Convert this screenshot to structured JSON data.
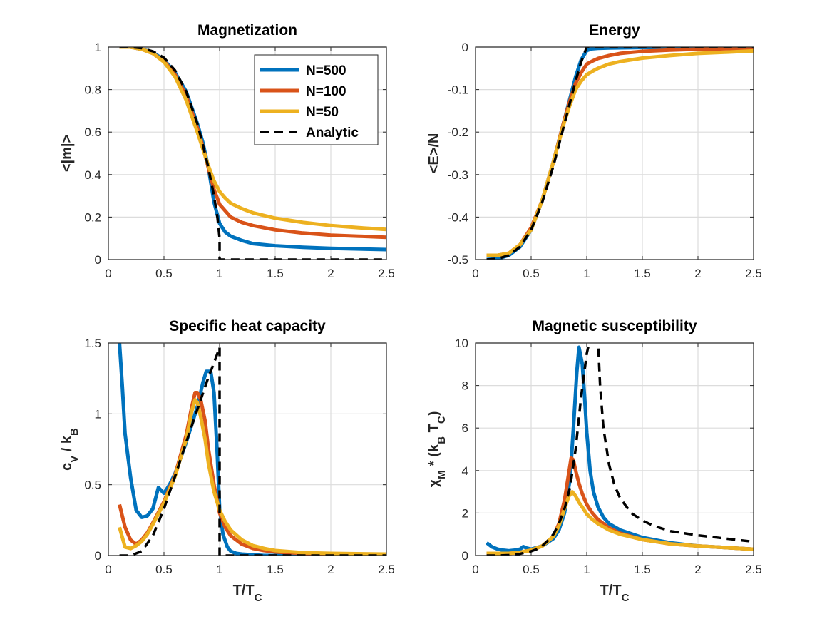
{
  "legend": {
    "placement": "top-right of first panel",
    "entries": [
      {
        "label": "N=500",
        "color": "#0072BD",
        "style": "solid"
      },
      {
        "label": "N=100",
        "color": "#D95319",
        "style": "solid"
      },
      {
        "label": "N=50",
        "color": "#EDB120",
        "style": "solid"
      },
      {
        "label": "Analytic",
        "color": "#000000",
        "style": "dashed"
      }
    ]
  },
  "chart_data": [
    {
      "type": "line",
      "title": "Magnetization",
      "ylabel": "<|m|>",
      "xlabel": "",
      "xlim": [
        0,
        2.5
      ],
      "ylim": [
        0,
        1
      ],
      "xticks": [
        "0",
        "0.5",
        "1",
        "1.5",
        "2",
        "2.5"
      ],
      "yticks": [
        "0",
        "0.2",
        "0.4",
        "0.6",
        "0.8",
        "1"
      ],
      "grid": true,
      "series": [
        {
          "name": "N=500",
          "color": "#0072BD",
          "dash": false,
          "x": [
            0.1,
            0.2,
            0.3,
            0.4,
            0.5,
            0.6,
            0.7,
            0.8,
            0.85,
            0.9,
            0.95,
            1.0,
            1.05,
            1.1,
            1.2,
            1.3,
            1.5,
            1.75,
            2.0,
            2.25,
            2.5
          ],
          "y": [
            1.0,
            1.0,
            0.99,
            0.975,
            0.94,
            0.88,
            0.79,
            0.64,
            0.55,
            0.43,
            0.27,
            0.17,
            0.13,
            0.11,
            0.09,
            0.075,
            0.065,
            0.058,
            0.053,
            0.05,
            0.047
          ]
        },
        {
          "name": "N=100",
          "color": "#D95319",
          "dash": false,
          "x": [
            0.1,
            0.2,
            0.3,
            0.4,
            0.5,
            0.6,
            0.7,
            0.8,
            0.85,
            0.9,
            0.95,
            1.0,
            1.05,
            1.1,
            1.2,
            1.3,
            1.5,
            1.75,
            2.0,
            2.25,
            2.5
          ],
          "y": [
            1.0,
            1.0,
            0.99,
            0.97,
            0.935,
            0.87,
            0.77,
            0.62,
            0.53,
            0.43,
            0.33,
            0.26,
            0.23,
            0.2,
            0.175,
            0.16,
            0.14,
            0.125,
            0.115,
            0.11,
            0.105
          ]
        },
        {
          "name": "N=50",
          "color": "#EDB120",
          "dash": false,
          "x": [
            0.1,
            0.2,
            0.3,
            0.4,
            0.5,
            0.6,
            0.7,
            0.8,
            0.85,
            0.9,
            0.95,
            1.0,
            1.05,
            1.1,
            1.2,
            1.3,
            1.5,
            1.75,
            2.0,
            2.25,
            2.5
          ],
          "y": [
            1.0,
            1.0,
            0.99,
            0.97,
            0.93,
            0.86,
            0.75,
            0.6,
            0.52,
            0.44,
            0.37,
            0.32,
            0.29,
            0.265,
            0.24,
            0.22,
            0.195,
            0.175,
            0.16,
            0.15,
            0.142
          ]
        },
        {
          "name": "Analytic",
          "color": "#000000",
          "dash": true,
          "x": [
            0.1,
            0.2,
            0.3,
            0.4,
            0.5,
            0.6,
            0.7,
            0.8,
            0.85,
            0.9,
            0.95,
            0.98,
            1.0,
            1.0,
            2.5
          ],
          "y": [
            1.0,
            1.0,
            0.995,
            0.98,
            0.95,
            0.89,
            0.79,
            0.64,
            0.54,
            0.43,
            0.3,
            0.2,
            0.1,
            0.0,
            0.0
          ]
        }
      ]
    },
    {
      "type": "line",
      "title": "Energy",
      "ylabel": "<E>/N",
      "xlabel": "",
      "xlim": [
        0,
        2.5
      ],
      "ylim": [
        -0.5,
        0
      ],
      "xticks": [
        "0",
        "0.5",
        "1",
        "1.5",
        "2",
        "2.5"
      ],
      "yticks": [
        "-0.5",
        "-0.4",
        "-0.3",
        "-0.2",
        "-0.1",
        "0"
      ],
      "grid": true,
      "series": [
        {
          "name": "N=500",
          "color": "#0072BD",
          "dash": false,
          "x": [
            0.1,
            0.2,
            0.3,
            0.4,
            0.5,
            0.6,
            0.7,
            0.8,
            0.85,
            0.9,
            0.95,
            1.0,
            1.05,
            1.1,
            1.2,
            1.5,
            2.0,
            2.5
          ],
          "y": [
            -0.5,
            -0.498,
            -0.49,
            -0.47,
            -0.43,
            -0.36,
            -0.27,
            -0.17,
            -0.12,
            -0.07,
            -0.03,
            -0.008,
            -0.004,
            -0.003,
            -0.002,
            -0.001,
            -0.001,
            -0.0005
          ]
        },
        {
          "name": "N=100",
          "color": "#D95319",
          "dash": false,
          "x": [
            0.1,
            0.2,
            0.3,
            0.4,
            0.5,
            0.6,
            0.7,
            0.8,
            0.85,
            0.9,
            0.95,
            1.0,
            1.05,
            1.1,
            1.2,
            1.3,
            1.5,
            1.75,
            2.0,
            2.5
          ],
          "y": [
            -0.49,
            -0.49,
            -0.485,
            -0.465,
            -0.425,
            -0.36,
            -0.27,
            -0.17,
            -0.125,
            -0.085,
            -0.06,
            -0.04,
            -0.033,
            -0.027,
            -0.02,
            -0.015,
            -0.01,
            -0.007,
            -0.005,
            -0.003
          ]
        },
        {
          "name": "N=50",
          "color": "#EDB120",
          "dash": false,
          "x": [
            0.1,
            0.2,
            0.3,
            0.4,
            0.5,
            0.6,
            0.7,
            0.8,
            0.85,
            0.9,
            0.95,
            1.0,
            1.05,
            1.1,
            1.2,
            1.3,
            1.5,
            1.75,
            2.0,
            2.25,
            2.5
          ],
          "y": [
            -0.49,
            -0.49,
            -0.485,
            -0.465,
            -0.43,
            -0.36,
            -0.27,
            -0.175,
            -0.135,
            -0.1,
            -0.08,
            -0.065,
            -0.057,
            -0.05,
            -0.04,
            -0.034,
            -0.026,
            -0.02,
            -0.015,
            -0.012,
            -0.009
          ]
        },
        {
          "name": "Analytic",
          "color": "#000000",
          "dash": true,
          "x": [
            0.1,
            0.2,
            0.3,
            0.4,
            0.5,
            0.6,
            0.7,
            0.8,
            0.85,
            0.9,
            0.95,
            1.0,
            1.05,
            2.5
          ],
          "y": [
            -0.5,
            -0.498,
            -0.49,
            -0.47,
            -0.43,
            -0.365,
            -0.28,
            -0.18,
            -0.13,
            -0.08,
            -0.035,
            0.0,
            0.0,
            0.0
          ]
        }
      ]
    },
    {
      "type": "line",
      "title": "Specific heat capacity",
      "ylabel": "c_V / k_B",
      "xlabel": "T/T_C",
      "xlim": [
        0,
        2.5
      ],
      "ylim": [
        0,
        1.5
      ],
      "xticks": [
        "0",
        "0.5",
        "1",
        "1.5",
        "2",
        "2.5"
      ],
      "yticks": [
        "0",
        "0.5",
        "1",
        "1.5"
      ],
      "grid": true,
      "series": [
        {
          "name": "N=500",
          "color": "#0072BD",
          "dash": false,
          "x": [
            0.1,
            0.125,
            0.15,
            0.2,
            0.25,
            0.3,
            0.35,
            0.4,
            0.45,
            0.5,
            0.55,
            0.6,
            0.7,
            0.8,
            0.85,
            0.88,
            0.92,
            0.95,
            0.98,
            1.0,
            1.03,
            1.07,
            1.1,
            1.15,
            1.2,
            1.3,
            1.4,
            2.5
          ],
          "y": [
            1.5,
            1.2,
            0.86,
            0.55,
            0.32,
            0.27,
            0.28,
            0.33,
            0.48,
            0.44,
            0.5,
            0.58,
            0.8,
            1.05,
            1.22,
            1.3,
            1.3,
            1.15,
            0.7,
            0.33,
            0.15,
            0.06,
            0.03,
            0.015,
            0.01,
            0.005,
            0.0,
            0.0
          ]
        },
        {
          "name": "N=100",
          "color": "#D95319",
          "dash": false,
          "x": [
            0.1,
            0.15,
            0.2,
            0.25,
            0.3,
            0.35,
            0.4,
            0.5,
            0.6,
            0.7,
            0.75,
            0.78,
            0.8,
            0.83,
            0.87,
            0.9,
            0.95,
            1.0,
            1.05,
            1.1,
            1.2,
            1.3,
            1.4,
            1.5,
            1.75,
            2.0,
            2.5
          ],
          "y": [
            0.36,
            0.2,
            0.11,
            0.08,
            0.11,
            0.16,
            0.23,
            0.38,
            0.57,
            0.85,
            1.05,
            1.15,
            1.15,
            1.1,
            0.95,
            0.75,
            0.5,
            0.3,
            0.2,
            0.14,
            0.08,
            0.05,
            0.035,
            0.025,
            0.015,
            0.01,
            0.005
          ]
        },
        {
          "name": "N=50",
          "color": "#EDB120",
          "dash": false,
          "x": [
            0.1,
            0.15,
            0.2,
            0.25,
            0.3,
            0.35,
            0.4,
            0.5,
            0.6,
            0.7,
            0.75,
            0.78,
            0.8,
            0.83,
            0.87,
            0.9,
            0.95,
            1.0,
            1.05,
            1.1,
            1.2,
            1.3,
            1.4,
            1.5,
            1.75,
            2.0,
            2.5
          ],
          "y": [
            0.2,
            0.06,
            0.05,
            0.07,
            0.1,
            0.15,
            0.22,
            0.37,
            0.56,
            0.82,
            1.02,
            1.1,
            1.08,
            0.98,
            0.82,
            0.65,
            0.45,
            0.32,
            0.24,
            0.18,
            0.11,
            0.07,
            0.05,
            0.035,
            0.02,
            0.015,
            0.01
          ]
        },
        {
          "name": "Analytic",
          "color": "#000000",
          "dash": true,
          "x": [
            0.1,
            0.2,
            0.3,
            0.4,
            0.5,
            0.6,
            0.7,
            0.8,
            0.9,
            0.95,
            1.0,
            1.0,
            2.5
          ],
          "y": [
            0.0,
            0.0,
            0.03,
            0.14,
            0.33,
            0.56,
            0.8,
            1.03,
            1.26,
            1.36,
            1.47,
            0.0,
            0.0
          ]
        }
      ]
    },
    {
      "type": "line",
      "title": "Magnetic susceptibility",
      "ylabel": "χ_M * (k_B T_C)",
      "xlabel": "T/T_C",
      "xlim": [
        0,
        2.5
      ],
      "ylim": [
        0,
        10
      ],
      "xticks": [
        "0",
        "0.5",
        "1",
        "1.5",
        "2",
        "2.5"
      ],
      "yticks": [
        "0",
        "2",
        "4",
        "6",
        "8",
        "10"
      ],
      "grid": true,
      "series": [
        {
          "name": "N=500",
          "color": "#0072BD",
          "dash": false,
          "x": [
            0.1,
            0.15,
            0.2,
            0.25,
            0.3,
            0.35,
            0.4,
            0.43,
            0.46,
            0.5,
            0.6,
            0.7,
            0.75,
            0.8,
            0.85,
            0.88,
            0.91,
            0.93,
            0.96,
            0.98,
            1.0,
            1.03,
            1.06,
            1.1,
            1.15,
            1.2,
            1.3,
            1.5,
            1.75,
            2.0,
            2.5
          ],
          "y": [
            0.6,
            0.4,
            0.3,
            0.25,
            0.22,
            0.25,
            0.3,
            0.42,
            0.35,
            0.3,
            0.45,
            0.8,
            1.2,
            2.0,
            3.6,
            6.0,
            8.6,
            9.8,
            9.0,
            7.5,
            5.8,
            4.0,
            3.0,
            2.3,
            1.8,
            1.5,
            1.2,
            0.85,
            0.6,
            0.45,
            0.3
          ]
        },
        {
          "name": "N=100",
          "color": "#D95319",
          "dash": false,
          "x": [
            0.1,
            0.2,
            0.3,
            0.4,
            0.5,
            0.6,
            0.7,
            0.75,
            0.8,
            0.83,
            0.86,
            0.88,
            0.9,
            0.93,
            0.96,
            1.0,
            1.05,
            1.1,
            1.2,
            1.3,
            1.5,
            1.75,
            2.0,
            2.5
          ],
          "y": [
            0.1,
            0.1,
            0.1,
            0.15,
            0.25,
            0.45,
            0.9,
            1.5,
            2.6,
            3.6,
            4.6,
            4.5,
            4.0,
            3.4,
            2.9,
            2.4,
            2.0,
            1.7,
            1.3,
            1.05,
            0.75,
            0.55,
            0.45,
            0.3
          ]
        },
        {
          "name": "N=50",
          "color": "#EDB120",
          "dash": false,
          "x": [
            0.1,
            0.2,
            0.3,
            0.4,
            0.5,
            0.6,
            0.7,
            0.75,
            0.8,
            0.84,
            0.87,
            0.9,
            0.93,
            0.97,
            1.0,
            1.05,
            1.1,
            1.2,
            1.3,
            1.5,
            1.75,
            2.0,
            2.5
          ],
          "y": [
            0.1,
            0.1,
            0.1,
            0.15,
            0.25,
            0.45,
            0.9,
            1.4,
            2.2,
            2.8,
            3.0,
            2.8,
            2.5,
            2.2,
            1.95,
            1.7,
            1.5,
            1.2,
            1.0,
            0.75,
            0.55,
            0.45,
            0.3
          ]
        },
        {
          "name": "Analytic",
          "color": "#000000",
          "dash": true,
          "x": [
            0.1,
            0.2,
            0.3,
            0.4,
            0.5,
            0.55,
            0.6,
            0.65,
            0.7,
            0.75,
            0.8,
            0.85,
            0.9,
            0.95,
            1.0,
            1.03,
            1.06,
            1.08,
            1.1,
            1.12,
            1.15,
            1.2,
            1.25,
            1.3,
            1.4,
            1.5,
            1.6,
            1.75,
            2.0,
            2.25,
            2.5
          ],
          "y": [
            0.0,
            0.0,
            0.02,
            0.08,
            0.2,
            0.3,
            0.45,
            0.7,
            1.0,
            1.5,
            2.2,
            3.2,
            5.0,
            7.5,
            9.5,
            10.2,
            10.5,
            10.5,
            10.3,
            8.0,
            6.0,
            4.3,
            3.3,
            2.7,
            2.0,
            1.65,
            1.4,
            1.15,
            0.95,
            0.8,
            0.65
          ]
        }
      ]
    }
  ]
}
